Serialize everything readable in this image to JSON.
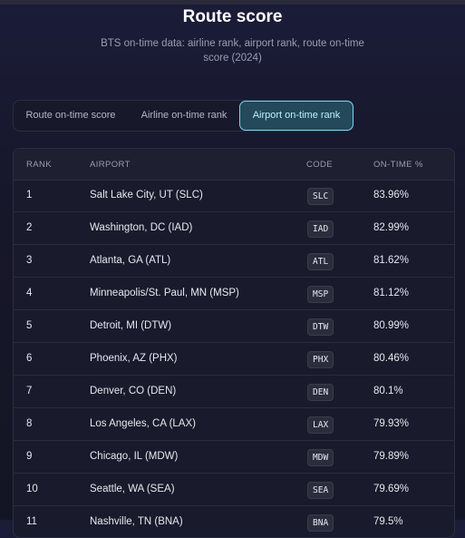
{
  "header": {
    "title": "Route score",
    "subtitle": "BTS on-time data: airline rank, airport rank, route on-time score (2024)"
  },
  "tabs": [
    {
      "label": "Route on-time score",
      "active": false
    },
    {
      "label": "Airline on-time rank",
      "active": false
    },
    {
      "label": "Airport on-time rank",
      "active": true
    }
  ],
  "table": {
    "columns": [
      "RANK",
      "AIRPORT",
      "CODE",
      "ON-TIME %"
    ],
    "rows": [
      [
        "1",
        "Salt Lake City, UT (SLC)",
        "SLC",
        "83.96%"
      ],
      [
        "2",
        "Washington, DC (IAD)",
        "IAD",
        "82.99%"
      ],
      [
        "3",
        "Atlanta, GA (ATL)",
        "ATL",
        "81.62%"
      ],
      [
        "4",
        "Minneapolis/St. Paul, MN (MSP)",
        "MSP",
        "81.12%"
      ],
      [
        "5",
        "Detroit, MI (DTW)",
        "DTW",
        "80.99%"
      ],
      [
        "6",
        "Phoenix, AZ (PHX)",
        "PHX",
        "80.46%"
      ],
      [
        "7",
        "Denver, CO (DEN)",
        "DEN",
        "80.1%"
      ],
      [
        "8",
        "Los Angeles, CA (LAX)",
        "LAX",
        "79.93%"
      ],
      [
        "9",
        "Chicago, IL (MDW)",
        "MDW",
        "79.89%"
      ],
      [
        "10",
        "Seattle, WA (SEA)",
        "SEA",
        "79.69%"
      ],
      [
        "11",
        "Nashville, TN (BNA)",
        "BNA",
        "79.5%"
      ]
    ]
  }
}
